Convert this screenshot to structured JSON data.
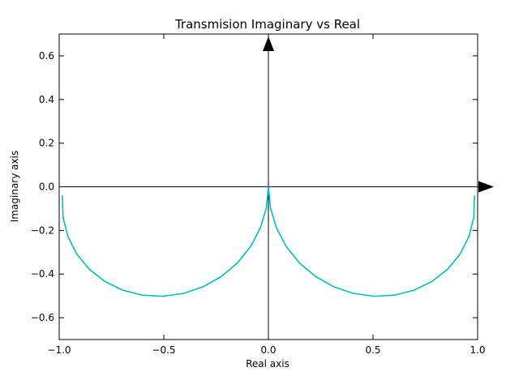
{
  "chart_data": {
    "type": "line",
    "title": "Transmision Imaginary vs Real",
    "xlabel": "Real axis",
    "ylabel": "Imaginary axis",
    "xlim": [
      -1.0,
      1.0
    ],
    "ylim": [
      -0.7,
      0.7
    ],
    "xticks": [
      -1.0,
      -0.5,
      0.0,
      0.5,
      1.0
    ],
    "xtick_labels": [
      "−1.0",
      "−0.5",
      "0.0",
      "0.5",
      "1.0"
    ],
    "yticks": [
      0.6,
      0.4,
      0.2,
      0.0,
      -0.2,
      -0.4,
      -0.6
    ],
    "ytick_labels": [
      "0.6",
      "0.4",
      "0.2",
      "0.0",
      "−0.2",
      "−0.4",
      "−0.6"
    ],
    "grid": false,
    "series": [
      {
        "color": "#00bfbf",
        "x": [
          0.0,
          -0.0096,
          -0.0382,
          -0.0849,
          -0.1478,
          -0.2244,
          -0.3119,
          -0.4068,
          -0.5052,
          -0.6033,
          -0.6971,
          -0.7828,
          -0.8568,
          -0.9162,
          -0.9584,
          -0.9817,
          -0.985
        ],
        "y": [
          0.0,
          -0.096,
          -0.1882,
          -0.2734,
          -0.3485,
          -0.4108,
          -0.4581,
          -0.4888,
          -0.5018,
          -0.4966,
          -0.4735,
          -0.4333,
          -0.3775,
          -0.3082,
          -0.2281,
          -0.1401,
          -0.04
        ]
      },
      {
        "color": "#00bfbf",
        "x": [
          0.0,
          0.0096,
          0.0382,
          0.0849,
          0.1478,
          0.2244,
          0.3119,
          0.4068,
          0.5052,
          0.6033,
          0.6971,
          0.7828,
          0.8568,
          0.9162,
          0.9584,
          0.9817,
          0.985
        ],
        "y": [
          0.0,
          -0.096,
          -0.1882,
          -0.2734,
          -0.3485,
          -0.4108,
          -0.4581,
          -0.4888,
          -0.5018,
          -0.4966,
          -0.4735,
          -0.4333,
          -0.3775,
          -0.3082,
          -0.2281,
          -0.1401,
          -0.04
        ]
      }
    ]
  }
}
